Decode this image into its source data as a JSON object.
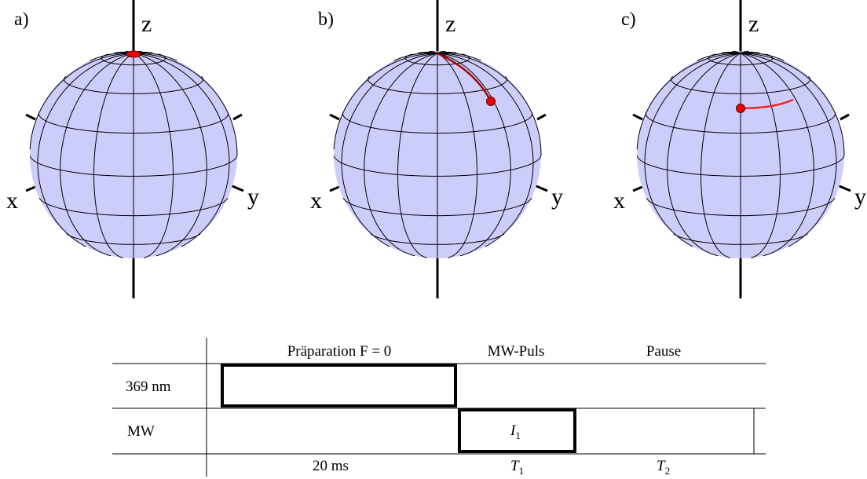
{
  "panels": [
    {
      "label": "a)",
      "z": "z",
      "x": "x",
      "y": "y"
    },
    {
      "label": "b)",
      "z": "z",
      "x": "x",
      "y": "y"
    },
    {
      "label": "c)",
      "z": "z",
      "x": "x",
      "y": "y"
    }
  ],
  "table": {
    "header": [
      "Präparation F = 0",
      "MW-Puls",
      "Pause"
    ],
    "rows": [
      {
        "label": "369 nm"
      },
      {
        "label": "MW",
        "pulse": {
          "main": "I",
          "sub": "1"
        }
      }
    ],
    "footer": [
      "20 ms",
      {
        "main": "T",
        "sub": "1"
      },
      {
        "main": "T",
        "sub": "2"
      }
    ]
  }
}
